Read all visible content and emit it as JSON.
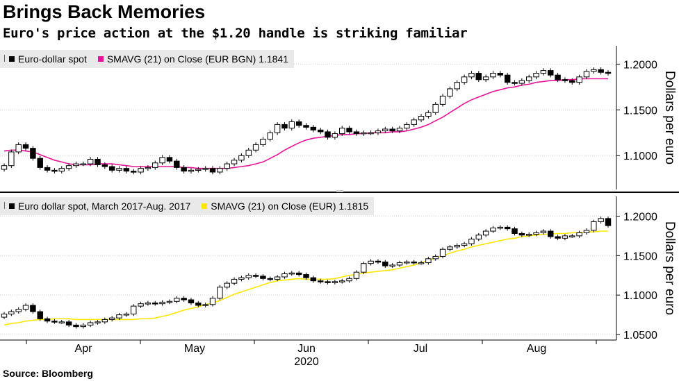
{
  "header": {
    "title": "Brings Back Memories",
    "subtitle": "Euro's price action at the $1.20 handle is striking familiar"
  },
  "footer": {
    "source": "Source: Bloomberg"
  },
  "colors": {
    "ma_top": "#e8139b",
    "ma_bottom": "#ffe600",
    "candle_body_down": "#000000",
    "candle_body_up": "#ffffff",
    "axis": "#000000",
    "grid": "#d0d0d0"
  },
  "chart_data": [
    {
      "type": "candlestick",
      "legend": {
        "series_label": "Euro-dollar spot",
        "ma_label": "SMAVG (21)  on Close (EUR BGN) 1.1841"
      },
      "ylabel": "Dollars per euro",
      "ylim": [
        1.063,
        1.22
      ],
      "yticks": [
        "1.1000",
        "1.1500",
        "1.2000"
      ],
      "ytick_values": [
        1.1,
        1.15,
        1.2
      ],
      "close": [
        1.089,
        1.104,
        1.112,
        1.108,
        1.097,
        1.087,
        1.084,
        1.083,
        1.086,
        1.089,
        1.091,
        1.091,
        1.096,
        1.09,
        1.088,
        1.084,
        1.086,
        1.083,
        1.082,
        1.086,
        1.087,
        1.092,
        1.098,
        1.094,
        1.087,
        1.083,
        1.084,
        1.085,
        1.086,
        1.082,
        1.086,
        1.091,
        1.095,
        1.1,
        1.106,
        1.112,
        1.118,
        1.125,
        1.134,
        1.13,
        1.137,
        1.133,
        1.131,
        1.128,
        1.126,
        1.12,
        1.124,
        1.13,
        1.126,
        1.124,
        1.125,
        1.125,
        1.127,
        1.129,
        1.127,
        1.13,
        1.134,
        1.139,
        1.143,
        1.147,
        1.156,
        1.165,
        1.173,
        1.18,
        1.186,
        1.19,
        1.183,
        1.186,
        1.19,
        1.188,
        1.18,
        1.179,
        1.182,
        1.186,
        1.19,
        1.193,
        1.188,
        1.183,
        1.182,
        1.18,
        1.186,
        1.192,
        1.194,
        1.191,
        1.19
      ],
      "ma": [
        1.105,
        1.106,
        1.106,
        1.105,
        1.104,
        1.101,
        1.098,
        1.095,
        1.093,
        1.091,
        1.09,
        1.09,
        1.09,
        1.091,
        1.091,
        1.091,
        1.09,
        1.089,
        1.088,
        1.088,
        1.088,
        1.088,
        1.088,
        1.088,
        1.088,
        1.087,
        1.087,
        1.086,
        1.086,
        1.086,
        1.086,
        1.086,
        1.087,
        1.088,
        1.089,
        1.091,
        1.093,
        1.097,
        1.101,
        1.106,
        1.11,
        1.114,
        1.117,
        1.119,
        1.12,
        1.121,
        1.122,
        1.123,
        1.123,
        1.124,
        1.124,
        1.125,
        1.125,
        1.125,
        1.126,
        1.126,
        1.127,
        1.129,
        1.131,
        1.134,
        1.138,
        1.142,
        1.147,
        1.152,
        1.157,
        1.161,
        1.164,
        1.167,
        1.17,
        1.172,
        1.174,
        1.175,
        1.177,
        1.178,
        1.18,
        1.181,
        1.182,
        1.182,
        1.183,
        1.183,
        1.184,
        1.184,
        1.184,
        1.184,
        1.184
      ]
    },
    {
      "type": "candlestick",
      "legend": {
        "series_label": "Euro dollar spot, March 2017-Aug. 2017",
        "ma_label": "SMAVG (21)  on Close (EUR) 1.1815"
      },
      "ylabel": "Dollars per euro",
      "ylim": [
        1.043,
        1.225
      ],
      "yticks": [
        "1.0500",
        "1.1000",
        "1.1500",
        "1.2000"
      ],
      "ytick_values": [
        1.05,
        1.1,
        1.15,
        1.2
      ],
      "close": [
        1.076,
        1.079,
        1.082,
        1.087,
        1.079,
        1.07,
        1.067,
        1.066,
        1.066,
        1.062,
        1.06,
        1.062,
        1.065,
        1.066,
        1.069,
        1.071,
        1.075,
        1.076,
        1.086,
        1.089,
        1.09,
        1.089,
        1.091,
        1.092,
        1.096,
        1.094,
        1.09,
        1.087,
        1.088,
        1.096,
        1.11,
        1.115,
        1.12,
        1.122,
        1.125,
        1.124,
        1.121,
        1.12,
        1.123,
        1.127,
        1.128,
        1.126,
        1.122,
        1.118,
        1.117,
        1.116,
        1.117,
        1.118,
        1.121,
        1.129,
        1.14,
        1.143,
        1.142,
        1.137,
        1.138,
        1.141,
        1.142,
        1.141,
        1.141,
        1.146,
        1.149,
        1.158,
        1.161,
        1.163,
        1.165,
        1.171,
        1.176,
        1.181,
        1.185,
        1.186,
        1.184,
        1.178,
        1.176,
        1.177,
        1.179,
        1.181,
        1.174,
        1.172,
        1.175,
        1.175,
        1.179,
        1.182,
        1.193,
        1.197,
        1.188
      ],
      "ma": [
        1.062,
        1.064,
        1.065,
        1.067,
        1.068,
        1.069,
        1.069,
        1.07,
        1.07,
        1.07,
        1.069,
        1.069,
        1.069,
        1.069,
        1.069,
        1.069,
        1.069,
        1.069,
        1.069,
        1.07,
        1.07,
        1.071,
        1.073,
        1.075,
        1.078,
        1.081,
        1.083,
        1.085,
        1.088,
        1.09,
        1.093,
        1.097,
        1.101,
        1.104,
        1.107,
        1.11,
        1.113,
        1.116,
        1.118,
        1.119,
        1.12,
        1.121,
        1.12,
        1.12,
        1.12,
        1.12,
        1.121,
        1.123,
        1.125,
        1.126,
        1.128,
        1.129,
        1.13,
        1.131,
        1.132,
        1.134,
        1.136,
        1.138,
        1.141,
        1.144,
        1.147,
        1.15,
        1.153,
        1.156,
        1.158,
        1.161,
        1.163,
        1.165,
        1.167,
        1.169,
        1.171,
        1.172,
        1.174,
        1.175,
        1.176,
        1.177,
        1.177,
        1.178,
        1.178,
        1.179,
        1.179,
        1.18,
        1.18,
        1.181,
        1.181
      ]
    }
  ],
  "x_axis": {
    "month_labels": [
      "Apr",
      "May",
      "Jun",
      "Jul",
      "Aug"
    ],
    "year_label": "2020"
  }
}
